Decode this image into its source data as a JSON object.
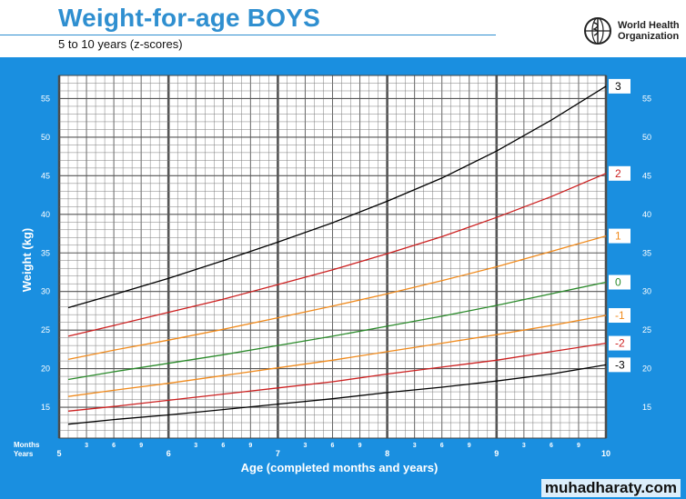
{
  "header": {
    "title": "Weight-for-age  BOYS",
    "subtitle": "5 to 10 years (z-scores)",
    "org_line1": "World Health",
    "org_line2": "Organization"
  },
  "colors": {
    "panel": "#1a8fe0",
    "title": "#2f8fd0",
    "z3": "#000000",
    "z2": "#cc1f1f",
    "z1": "#f08a1c",
    "z0": "#2a8a2a"
  },
  "watermark": "muhadharaty.com",
  "chart_data": {
    "type": "line",
    "title": "Weight-for-age  BOYS",
    "subtitle": "5 to 10 years (z-scores)",
    "xlabel": "Age (completed months and years)",
    "ylabel": "Weight (kg)",
    "xlim": [
      60,
      120
    ],
    "ylim": [
      11,
      58
    ],
    "x_unit": "months",
    "grid": true,
    "row_label_months": "Months",
    "row_label_years": "Years",
    "year_ticks": [
      {
        "month": 60,
        "label": "5"
      },
      {
        "month": 72,
        "label": "6"
      },
      {
        "month": 84,
        "label": "7"
      },
      {
        "month": 96,
        "label": "8"
      },
      {
        "month": 108,
        "label": "9"
      },
      {
        "month": 120,
        "label": "10"
      }
    ],
    "month_ticks": [
      "3",
      "6",
      "9"
    ],
    "yticks": [
      15,
      20,
      25,
      30,
      35,
      40,
      45,
      50,
      55
    ],
    "x": [
      61,
      66,
      72,
      78,
      84,
      90,
      96,
      102,
      108,
      114,
      120
    ],
    "series": [
      {
        "name": "3",
        "color": "#000000",
        "values": [
          27.9,
          29.6,
          31.7,
          34.0,
          36.4,
          38.9,
          41.7,
          44.7,
          48.2,
          52.2,
          56.6
        ]
      },
      {
        "name": "2",
        "color": "#cc1f1f",
        "values": [
          24.2,
          25.6,
          27.3,
          29.0,
          30.9,
          32.8,
          34.9,
          37.1,
          39.6,
          42.3,
          45.3
        ]
      },
      {
        "name": "1",
        "color": "#f08a1c",
        "values": [
          21.2,
          22.4,
          23.7,
          25.1,
          26.6,
          28.1,
          29.7,
          31.4,
          33.2,
          35.2,
          37.2
        ]
      },
      {
        "name": "0",
        "color": "#2a8a2a",
        "values": [
          18.6,
          19.6,
          20.7,
          21.8,
          23.0,
          24.2,
          25.5,
          26.8,
          28.2,
          29.7,
          31.2
        ]
      },
      {
        "name": "-1",
        "color": "#f08a1c",
        "values": [
          16.4,
          17.2,
          18.1,
          19.1,
          20.1,
          21.1,
          22.2,
          23.3,
          24.4,
          25.6,
          26.9
        ]
      },
      {
        "name": "-2",
        "color": "#cc1f1f",
        "values": [
          14.5,
          15.1,
          15.9,
          16.7,
          17.5,
          18.3,
          19.3,
          20.2,
          21.1,
          22.2,
          23.3
        ]
      },
      {
        "name": "-3",
        "color": "#000000",
        "values": [
          12.8,
          13.4,
          14.0,
          14.7,
          15.4,
          16.1,
          16.9,
          17.6,
          18.4,
          19.3,
          20.5
        ]
      }
    ]
  }
}
